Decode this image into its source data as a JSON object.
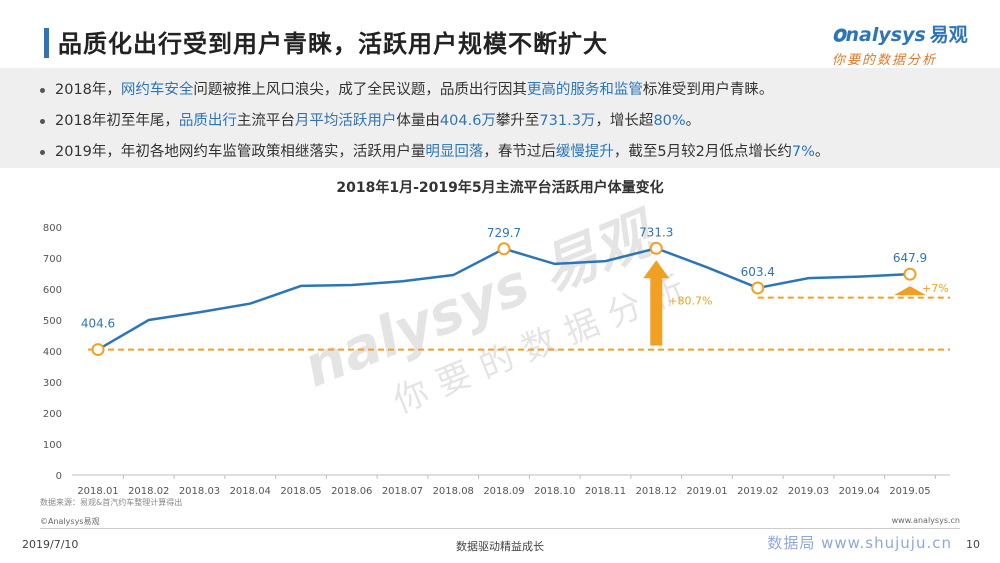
{
  "header": {
    "title": "品质化出行受到用户青睐，活跃用户规模不断扩大",
    "logo_text": "nalysys",
    "logo_cn": "易观",
    "logo_sub": "你要的数据分析"
  },
  "bullets": [
    {
      "parts": [
        {
          "t": "2018年，"
        },
        {
          "t": "网约车安全",
          "hl": true
        },
        {
          "t": "问题被推上风口浪尖，成了全民议题，品质出行因其"
        },
        {
          "t": "更高的服务和监管",
          "hl": true
        },
        {
          "t": "标准受到用户青睐。"
        }
      ]
    },
    {
      "parts": [
        {
          "t": "2018年初至年尾，"
        },
        {
          "t": "品质出行",
          "hl": true
        },
        {
          "t": "主流平台"
        },
        {
          "t": "月平均活跃用户",
          "hl": true
        },
        {
          "t": "体量由"
        },
        {
          "t": "404.6万",
          "hl": true
        },
        {
          "t": "攀升至"
        },
        {
          "t": "731.3万",
          "hl": true
        },
        {
          "t": "，增长超"
        },
        {
          "t": "80%",
          "hl": true
        },
        {
          "t": "。"
        }
      ]
    },
    {
      "parts": [
        {
          "t": "2019年，年初各地网约车监管政策相继落实，活跃用户量"
        },
        {
          "t": "明显回落",
          "hl": true
        },
        {
          "t": "，春节过后"
        },
        {
          "t": "缓慢提升",
          "hl": true
        },
        {
          "t": "，截至5月较2月低点增长约"
        },
        {
          "t": "7%",
          "hl": true
        },
        {
          "t": "。"
        }
      ]
    }
  ],
  "chart_data": {
    "type": "line",
    "title": "2018年1月-2019年5月主流平台活跃用户体量变化",
    "categories": [
      "2018.01",
      "2018.02",
      "2018.03",
      "2018.04",
      "2018.05",
      "2018.06",
      "2018.07",
      "2018.08",
      "2018.09",
      "2018.10",
      "2018.11",
      "2018.12",
      "2019.01",
      "2019.02",
      "2019.03",
      "2019.04",
      "2019.05"
    ],
    "series": [
      {
        "values": [
          404.6,
          500,
          525,
          553,
          610,
          613,
          625,
          645,
          729.7,
          681,
          690,
          731.3,
          670,
          603.4,
          635,
          640,
          647.9
        ]
      }
    ],
    "ylim": [
      0,
      800
    ],
    "yticks": [
      0,
      100,
      200,
      300,
      400,
      500,
      600,
      700,
      800
    ],
    "grid": false,
    "highlighted_points": [
      {
        "index": 0,
        "label": "404.6"
      },
      {
        "index": 8,
        "label": "729.7"
      },
      {
        "index": 11,
        "label": "731.3"
      },
      {
        "index": 13,
        "label": "603.4"
      },
      {
        "index": 16,
        "label": "647.9"
      }
    ],
    "reference_lines": [
      {
        "value": 404.6,
        "from_index": 0,
        "to_index": 16
      },
      {
        "value": 572,
        "from_index": 13,
        "to_index": 16
      }
    ],
    "annotations": [
      {
        "text": "+80.7%",
        "at_index": 11
      },
      {
        "text": "+7%",
        "at_index": 16
      }
    ],
    "colors": {
      "line": "#2E75B6",
      "highlight": "#F2A024",
      "ref": "#F2A024",
      "arrow": "#F2A024"
    }
  },
  "watermark": {
    "main": "nalysys 易观",
    "sub": "你要的数据分析"
  },
  "footer": {
    "source": "数据来源：易观&首汽约车整理计算得出",
    "copyright": "©Analysys易观",
    "site": "www.analysys.cn",
    "date": "2019/7/10",
    "slogan": "数据驱动精益成长",
    "watermark_site": "数据局 www.shujuju.cn",
    "page": "10"
  }
}
